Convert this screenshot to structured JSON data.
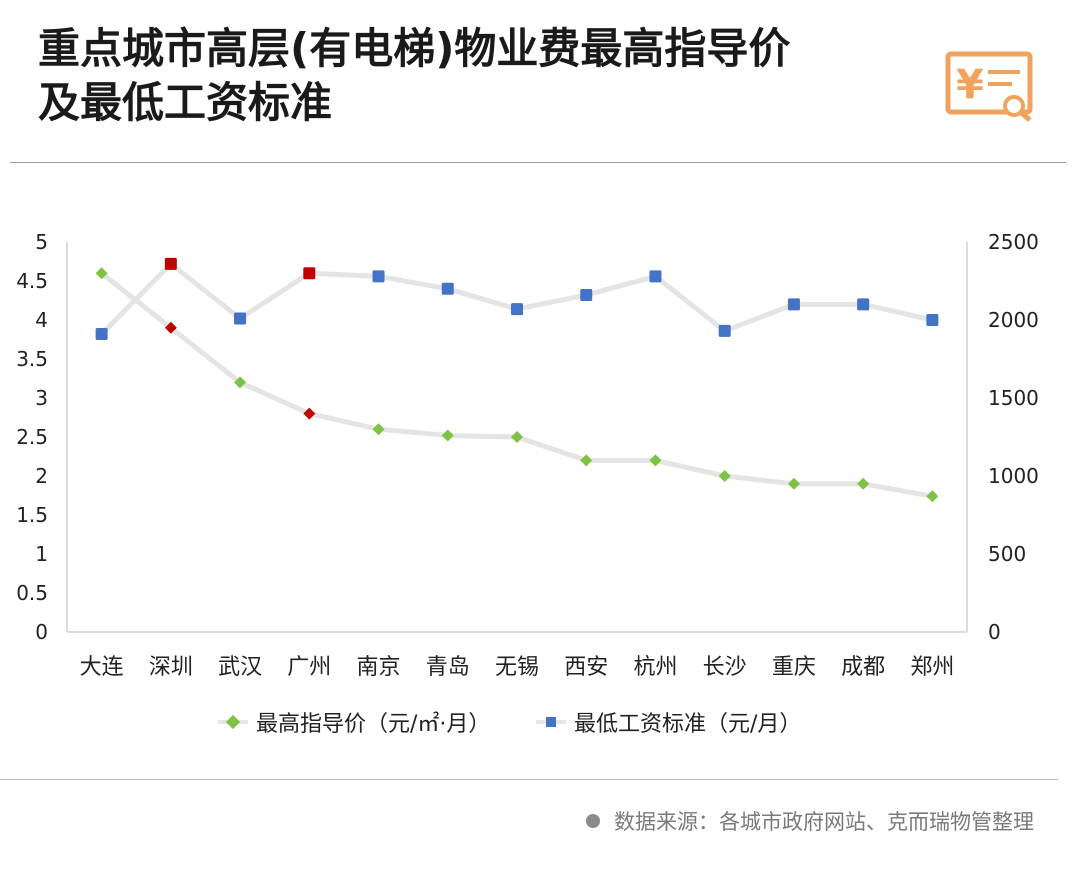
{
  "header": {
    "title_line1": "重点城市高层(有电梯)物业费最高指导价",
    "title_line2": "及最低工资标准",
    "logo_icon": "yuan-document-search-icon",
    "logo_color": "#f0a35c"
  },
  "footer": {
    "source_text": "数据来源：各城市政府网站、克而瑞物管整理"
  },
  "legend": {
    "series1": "最高指导价（元/㎡·月）",
    "series2": "最低工资标准（元/月）"
  },
  "chart_data": {
    "type": "line",
    "categories": [
      "大连",
      "深圳",
      "武汉",
      "广州",
      "南京",
      "青岛",
      "无锡",
      "西安",
      "杭州",
      "长沙",
      "重庆",
      "成都",
      "郑州"
    ],
    "y_left": {
      "ylim": [
        0,
        5
      ],
      "ticks": [
        "0",
        "0.5",
        "1",
        "1.5",
        "2",
        "2.5",
        "3",
        "3.5",
        "4",
        "4.5",
        "5"
      ]
    },
    "y_right": {
      "ylim": [
        0,
        2500
      ],
      "ticks": [
        "0",
        "500",
        "1000",
        "1500",
        "2000",
        "2500"
      ]
    },
    "grid": false,
    "legend_position": "bottom",
    "series": [
      {
        "name": "最高指导价（元/㎡·月）",
        "axis": "left",
        "marker": "diamond",
        "color": "#7dc243",
        "highlight_color": "#c00000",
        "values": [
          4.6,
          3.9,
          3.2,
          2.8,
          2.6,
          2.52,
          2.5,
          2.2,
          2.2,
          2.0,
          1.9,
          1.9,
          1.74
        ],
        "highlighted": [
          false,
          true,
          false,
          true,
          false,
          false,
          false,
          false,
          false,
          false,
          false,
          false,
          false
        ]
      },
      {
        "name": "最低工资标准（元/月）",
        "axis": "right",
        "marker": "square",
        "color": "#4472c4",
        "highlight_color": "#c00000",
        "values": [
          1910,
          2360,
          2010,
          2300,
          2280,
          2200,
          2070,
          2160,
          2280,
          1930,
          2100,
          2100,
          2000
        ],
        "highlighted": [
          false,
          true,
          false,
          true,
          false,
          false,
          false,
          false,
          false,
          false,
          false,
          false,
          false
        ]
      }
    ]
  }
}
